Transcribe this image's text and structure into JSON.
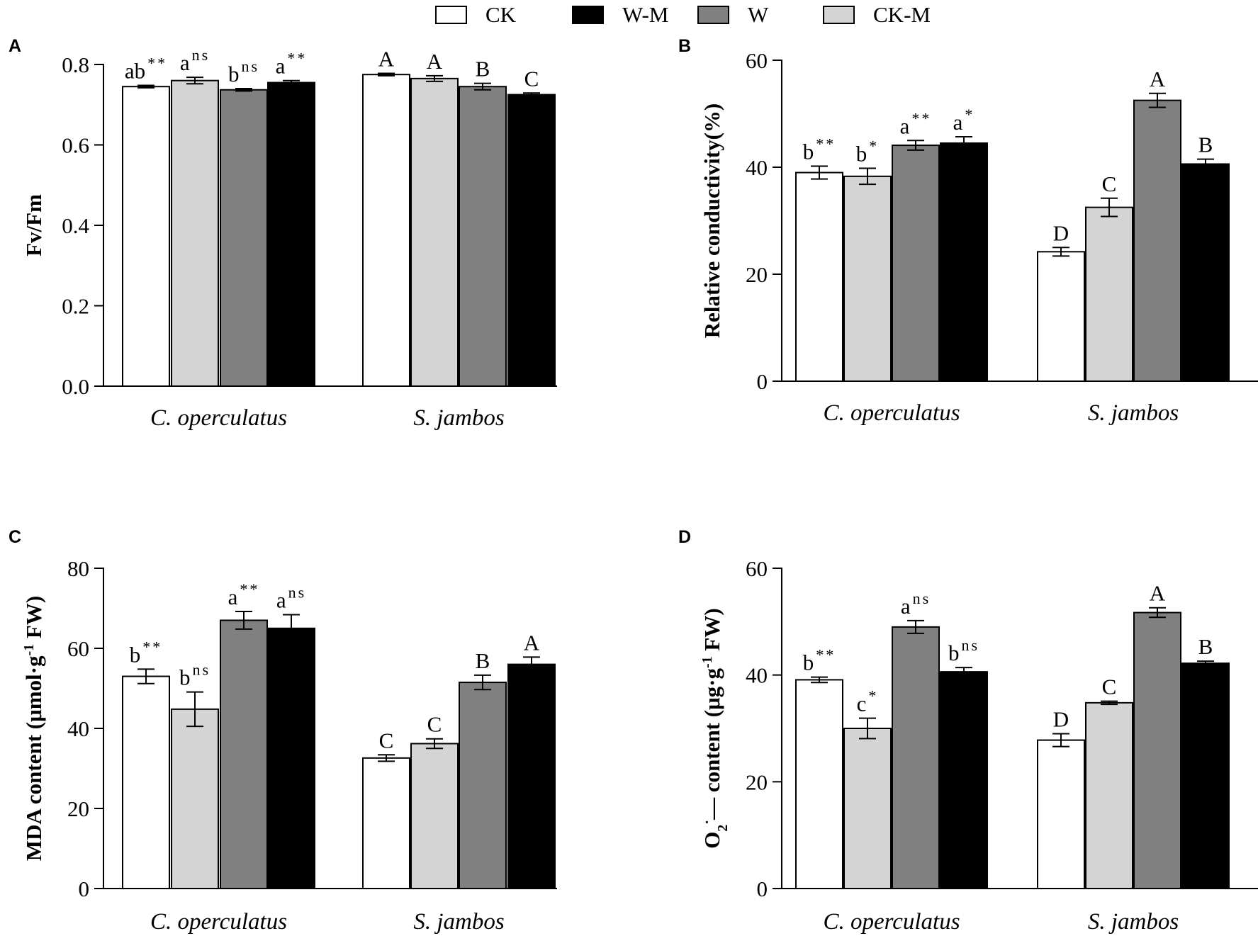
{
  "legend": {
    "items": [
      {
        "label": "CK",
        "color": "#ffffff"
      },
      {
        "label": "W-M",
        "color": "#000000"
      },
      {
        "label": "W",
        "color": "#808080"
      },
      {
        "label": "CK-M",
        "color": "#d4d4d4"
      }
    ]
  },
  "chart_data": [
    {
      "panel": "A",
      "type": "bar",
      "ylabel": "Fv/Fm",
      "ylabel_parts": [
        {
          "text": "Fv/Fm"
        }
      ],
      "ylim": [
        0,
        0.8
      ],
      "yticks": [
        "0.0",
        "0.2",
        "0.4",
        "0.6",
        "0.8"
      ],
      "categories": [
        "C. operculatus",
        "S. jambos"
      ],
      "series": [
        {
          "name": "CK",
          "color": "#ffffff",
          "values": [
            0.745,
            0.775
          ],
          "errors": [
            0.003,
            0.003
          ],
          "labels": [
            {
              "text": "ab",
              "sup": "**"
            },
            {
              "text": "A",
              "sup": ""
            }
          ]
        },
        {
          "name": "CK-M",
          "color": "#d4d4d4",
          "values": [
            0.76,
            0.765
          ],
          "errors": [
            0.008,
            0.007
          ],
          "labels": [
            {
              "text": "a",
              "sup": "ns"
            },
            {
              "text": "A",
              "sup": ""
            }
          ]
        },
        {
          "name": "W",
          "color": "#808080",
          "values": [
            0.737,
            0.745
          ],
          "errors": [
            0.003,
            0.008
          ],
          "labels": [
            {
              "text": "b",
              "sup": "ns"
            },
            {
              "text": "B",
              "sup": ""
            }
          ]
        },
        {
          "name": "W-M",
          "color": "#000000",
          "values": [
            0.755,
            0.725
          ],
          "errors": [
            0.005,
            0.004
          ],
          "labels": [
            {
              "text": "a",
              "sup": "**"
            },
            {
              "text": "C",
              "sup": ""
            }
          ]
        }
      ]
    },
    {
      "panel": "B",
      "type": "bar",
      "ylabel": "Relative conductivity(%)",
      "ylabel_parts": [
        {
          "text": "Relative conductivity(%)"
        }
      ],
      "ylim": [
        0,
        60
      ],
      "yticks": [
        "0",
        "20",
        "40",
        "60"
      ],
      "categories": [
        "C. operculatus",
        "S. jambos"
      ],
      "series": [
        {
          "name": "CK",
          "color": "#ffffff",
          "values": [
            39,
            24.2
          ],
          "errors": [
            1.2,
            0.8
          ],
          "labels": [
            {
              "text": "b",
              "sup": "**"
            },
            {
              "text": "D",
              "sup": ""
            }
          ]
        },
        {
          "name": "CK-M",
          "color": "#d4d4d4",
          "values": [
            38.3,
            32.5
          ],
          "errors": [
            1.5,
            1.7
          ],
          "labels": [
            {
              "text": "b",
              "sup": "*"
            },
            {
              "text": "C",
              "sup": ""
            }
          ]
        },
        {
          "name": "W",
          "color": "#808080",
          "values": [
            44.1,
            52.5
          ],
          "errors": [
            0.9,
            1.3
          ],
          "labels": [
            {
              "text": "a",
              "sup": "**"
            },
            {
              "text": "A",
              "sup": ""
            }
          ]
        },
        {
          "name": "W-M",
          "color": "#000000",
          "values": [
            44.5,
            40.6
          ],
          "errors": [
            1.2,
            0.9
          ],
          "labels": [
            {
              "text": "a",
              "sup": "*"
            },
            {
              "text": "B",
              "sup": ""
            }
          ]
        }
      ]
    },
    {
      "panel": "C",
      "type": "bar",
      "ylabel": "MDA content (μmol·g-1 FW)",
      "ylabel_parts": [
        {
          "text": "MDA content (μmol·g"
        },
        {
          "text": "-1",
          "sup": true
        },
        {
          "text": " FW)"
        }
      ],
      "ylim": [
        0,
        80
      ],
      "yticks": [
        "0",
        "20",
        "40",
        "60",
        "80"
      ],
      "categories": [
        "C. operculatus",
        "S. jambos"
      ],
      "series": [
        {
          "name": "CK",
          "color": "#ffffff",
          "values": [
            53,
            32.6
          ],
          "errors": [
            1.8,
            0.8
          ],
          "labels": [
            {
              "text": "b",
              "sup": "**"
            },
            {
              "text": "C",
              "sup": ""
            }
          ]
        },
        {
          "name": "CK-M",
          "color": "#d4d4d4",
          "values": [
            44.8,
            36.2
          ],
          "errors": [
            4.3,
            1.2
          ],
          "labels": [
            {
              "text": "b",
              "sup": "ns"
            },
            {
              "text": "C",
              "sup": ""
            }
          ]
        },
        {
          "name": "W",
          "color": "#808080",
          "values": [
            67,
            51.5
          ],
          "errors": [
            2.2,
            1.8
          ],
          "labels": [
            {
              "text": "a",
              "sup": "**"
            },
            {
              "text": "B",
              "sup": ""
            }
          ]
        },
        {
          "name": "W-M",
          "color": "#000000",
          "values": [
            65,
            56
          ],
          "errors": [
            3.4,
            1.8
          ],
          "labels": [
            {
              "text": "a",
              "sup": "ns"
            },
            {
              "text": "A",
              "sup": ""
            }
          ]
        }
      ]
    },
    {
      "panel": "D",
      "type": "bar",
      "ylabel": "O2·− content (μg·g-1 FW)",
      "ylabel_parts": [
        {
          "text": "O"
        },
        {
          "text": "2",
          "sub": true
        },
        {
          "text": "·",
          "sup": true
        },
        {
          "text": "— content (μg·g"
        },
        {
          "text": "-1",
          "sup": true
        },
        {
          "text": " FW)"
        }
      ],
      "ylim": [
        0,
        60
      ],
      "yticks": [
        "0",
        "20",
        "40",
        "60"
      ],
      "categories": [
        "C. operculatus",
        "S. jambos"
      ],
      "series": [
        {
          "name": "CK",
          "color": "#ffffff",
          "values": [
            39.1,
            27.8
          ],
          "errors": [
            0.5,
            1.2
          ],
          "labels": [
            {
              "text": "b",
              "sup": "**"
            },
            {
              "text": "D",
              "sup": ""
            }
          ]
        },
        {
          "name": "CK-M",
          "color": "#d4d4d4",
          "values": [
            30,
            34.8
          ],
          "errors": [
            1.9,
            0.3
          ],
          "labels": [
            {
              "text": "c",
              "sup": "*"
            },
            {
              "text": "C",
              "sup": ""
            }
          ]
        },
        {
          "name": "W",
          "color": "#808080",
          "values": [
            49,
            51.7
          ],
          "errors": [
            1.2,
            0.9
          ],
          "labels": [
            {
              "text": "a",
              "sup": "ns"
            },
            {
              "text": "A",
              "sup": ""
            }
          ]
        },
        {
          "name": "W-M",
          "color": "#000000",
          "values": [
            40.6,
            42.2
          ],
          "errors": [
            0.8,
            0.4
          ],
          "labels": [
            {
              "text": "b",
              "sup": "ns"
            },
            {
              "text": "B",
              "sup": ""
            }
          ]
        }
      ]
    }
  ]
}
